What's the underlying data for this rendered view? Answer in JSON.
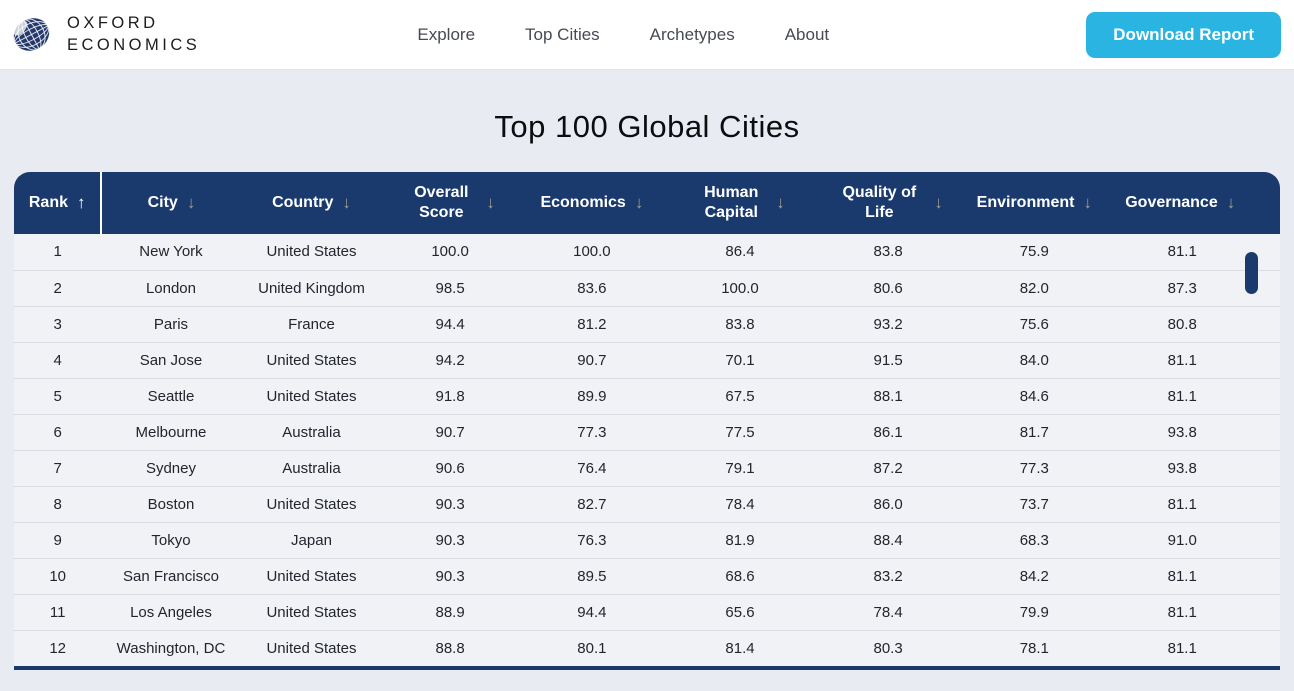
{
  "brand": {
    "line1": "OXFORD",
    "line2": "ECONOMICS"
  },
  "nav": {
    "items": [
      {
        "label": "Explore"
      },
      {
        "label": "Top Cities"
      },
      {
        "label": "Archetypes"
      },
      {
        "label": "About"
      }
    ]
  },
  "header": {
    "download_button": "Download Report"
  },
  "page": {
    "title": "Top 100 Global Cities"
  },
  "table": {
    "columns": [
      {
        "label": "Rank",
        "arrow": "up",
        "active": true,
        "wrap": false
      },
      {
        "label": "City",
        "arrow": "down",
        "active": false,
        "wrap": false
      },
      {
        "label": "Country",
        "arrow": "down",
        "active": false,
        "wrap": false
      },
      {
        "label": "Overall Score",
        "arrow": "down",
        "active": false,
        "wrap": true
      },
      {
        "label": "Economics",
        "arrow": "down",
        "active": false,
        "wrap": false
      },
      {
        "label": "Human Capital",
        "arrow": "down",
        "active": false,
        "wrap": true
      },
      {
        "label": "Quality of Life",
        "arrow": "down",
        "active": false,
        "wrap": true
      },
      {
        "label": "Environment",
        "arrow": "down",
        "active": false,
        "wrap": false
      },
      {
        "label": "Governance",
        "arrow": "down",
        "active": false,
        "wrap": false
      }
    ],
    "rows": [
      [
        "1",
        "New York",
        "United States",
        "100.0",
        "100.0",
        "86.4",
        "83.8",
        "75.9",
        "81.1"
      ],
      [
        "2",
        "London",
        "United Kingdom",
        "98.5",
        "83.6",
        "100.0",
        "80.6",
        "82.0",
        "87.3"
      ],
      [
        "3",
        "Paris",
        "France",
        "94.4",
        "81.2",
        "83.8",
        "93.2",
        "75.6",
        "80.8"
      ],
      [
        "4",
        "San Jose",
        "United States",
        "94.2",
        "90.7",
        "70.1",
        "91.5",
        "84.0",
        "81.1"
      ],
      [
        "5",
        "Seattle",
        "United States",
        "91.8",
        "89.9",
        "67.5",
        "88.1",
        "84.6",
        "81.1"
      ],
      [
        "6",
        "Melbourne",
        "Australia",
        "90.7",
        "77.3",
        "77.5",
        "86.1",
        "81.7",
        "93.8"
      ],
      [
        "7",
        "Sydney",
        "Australia",
        "90.6",
        "76.4",
        "79.1",
        "87.2",
        "77.3",
        "93.8"
      ],
      [
        "8",
        "Boston",
        "United States",
        "90.3",
        "82.7",
        "78.4",
        "86.0",
        "73.7",
        "81.1"
      ],
      [
        "9",
        "Tokyo",
        "Japan",
        "90.3",
        "76.3",
        "81.9",
        "88.4",
        "68.3",
        "91.0"
      ],
      [
        "10",
        "San Francisco",
        "United States",
        "90.3",
        "89.5",
        "68.6",
        "83.2",
        "84.2",
        "81.1"
      ],
      [
        "11",
        "Los Angeles",
        "United States",
        "88.9",
        "94.4",
        "65.6",
        "78.4",
        "79.9",
        "81.1"
      ],
      [
        "12",
        "Washington, DC",
        "United States",
        "88.8",
        "80.1",
        "81.4",
        "80.3",
        "78.1",
        "81.1"
      ]
    ]
  },
  "colors": {
    "navy": "#1a3a6d",
    "cyan": "#2ab4e2",
    "page_background": "#e8ebf1",
    "row_background": "#f0f2f6",
    "sort_arrow_inactive": "#a39d8d"
  }
}
